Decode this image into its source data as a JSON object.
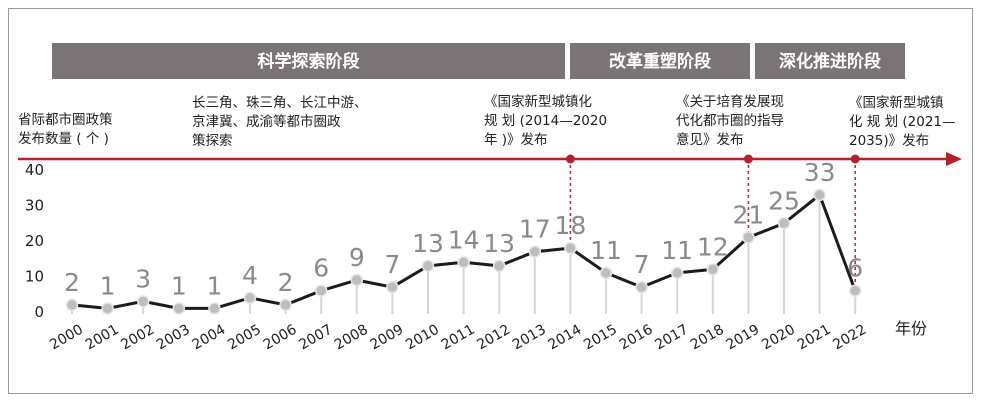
{
  "chart_data": {
    "type": "line",
    "title": "",
    "ylabel_lines": [
      "省际都市圈政策",
      "发布数量 ( 个 )"
    ],
    "xlabel": "年份",
    "ylim": [
      0,
      40
    ],
    "yticks": [
      0,
      10,
      20,
      30,
      40
    ],
    "categories": [
      "2000",
      "2001",
      "2002",
      "2003",
      "2004",
      "2005",
      "2006",
      "2007",
      "2008",
      "2009",
      "2010",
      "2011",
      "2012",
      "2013",
      "2014",
      "2015",
      "2016",
      "2017",
      "2018",
      "2019",
      "2020",
      "2021",
      "2022"
    ],
    "values": [
      2,
      1,
      3,
      1,
      1,
      4,
      2,
      6,
      9,
      7,
      13,
      14,
      13,
      17,
      18,
      11,
      7,
      11,
      12,
      21,
      25,
      33,
      6
    ],
    "phases": [
      {
        "label": "科学探索阶段",
        "from": "2000",
        "to": "2014"
      },
      {
        "label": "改革重塑阶段",
        "from": "2014",
        "to": "2019"
      },
      {
        "label": "深化推进阶段",
        "from": "2019",
        "to": "2022"
      }
    ],
    "annotations": [
      {
        "lines": [
          "长三角、珠三角、长江中游、",
          "京津冀、成渝等都市圈政",
          "策探索"
        ]
      },
      {
        "lines": [
          "《国家新型城镇化",
          "规 划 (2014—2020",
          "年 )》发布"
        ],
        "year": "2014"
      },
      {
        "lines": [
          "《关于培育发展现",
          "代化都市圈的指导",
          "意见》发布"
        ],
        "year": "2019"
      },
      {
        "lines": [
          "《国家新型城镇",
          "化 规 划 (2021—",
          "2035)》发布"
        ],
        "year": "2022"
      }
    ],
    "colors": {
      "line": "#1c1c1c",
      "arrow": "#b3202e",
      "phase": "#7a7476",
      "label": "#8a8a8a"
    }
  }
}
